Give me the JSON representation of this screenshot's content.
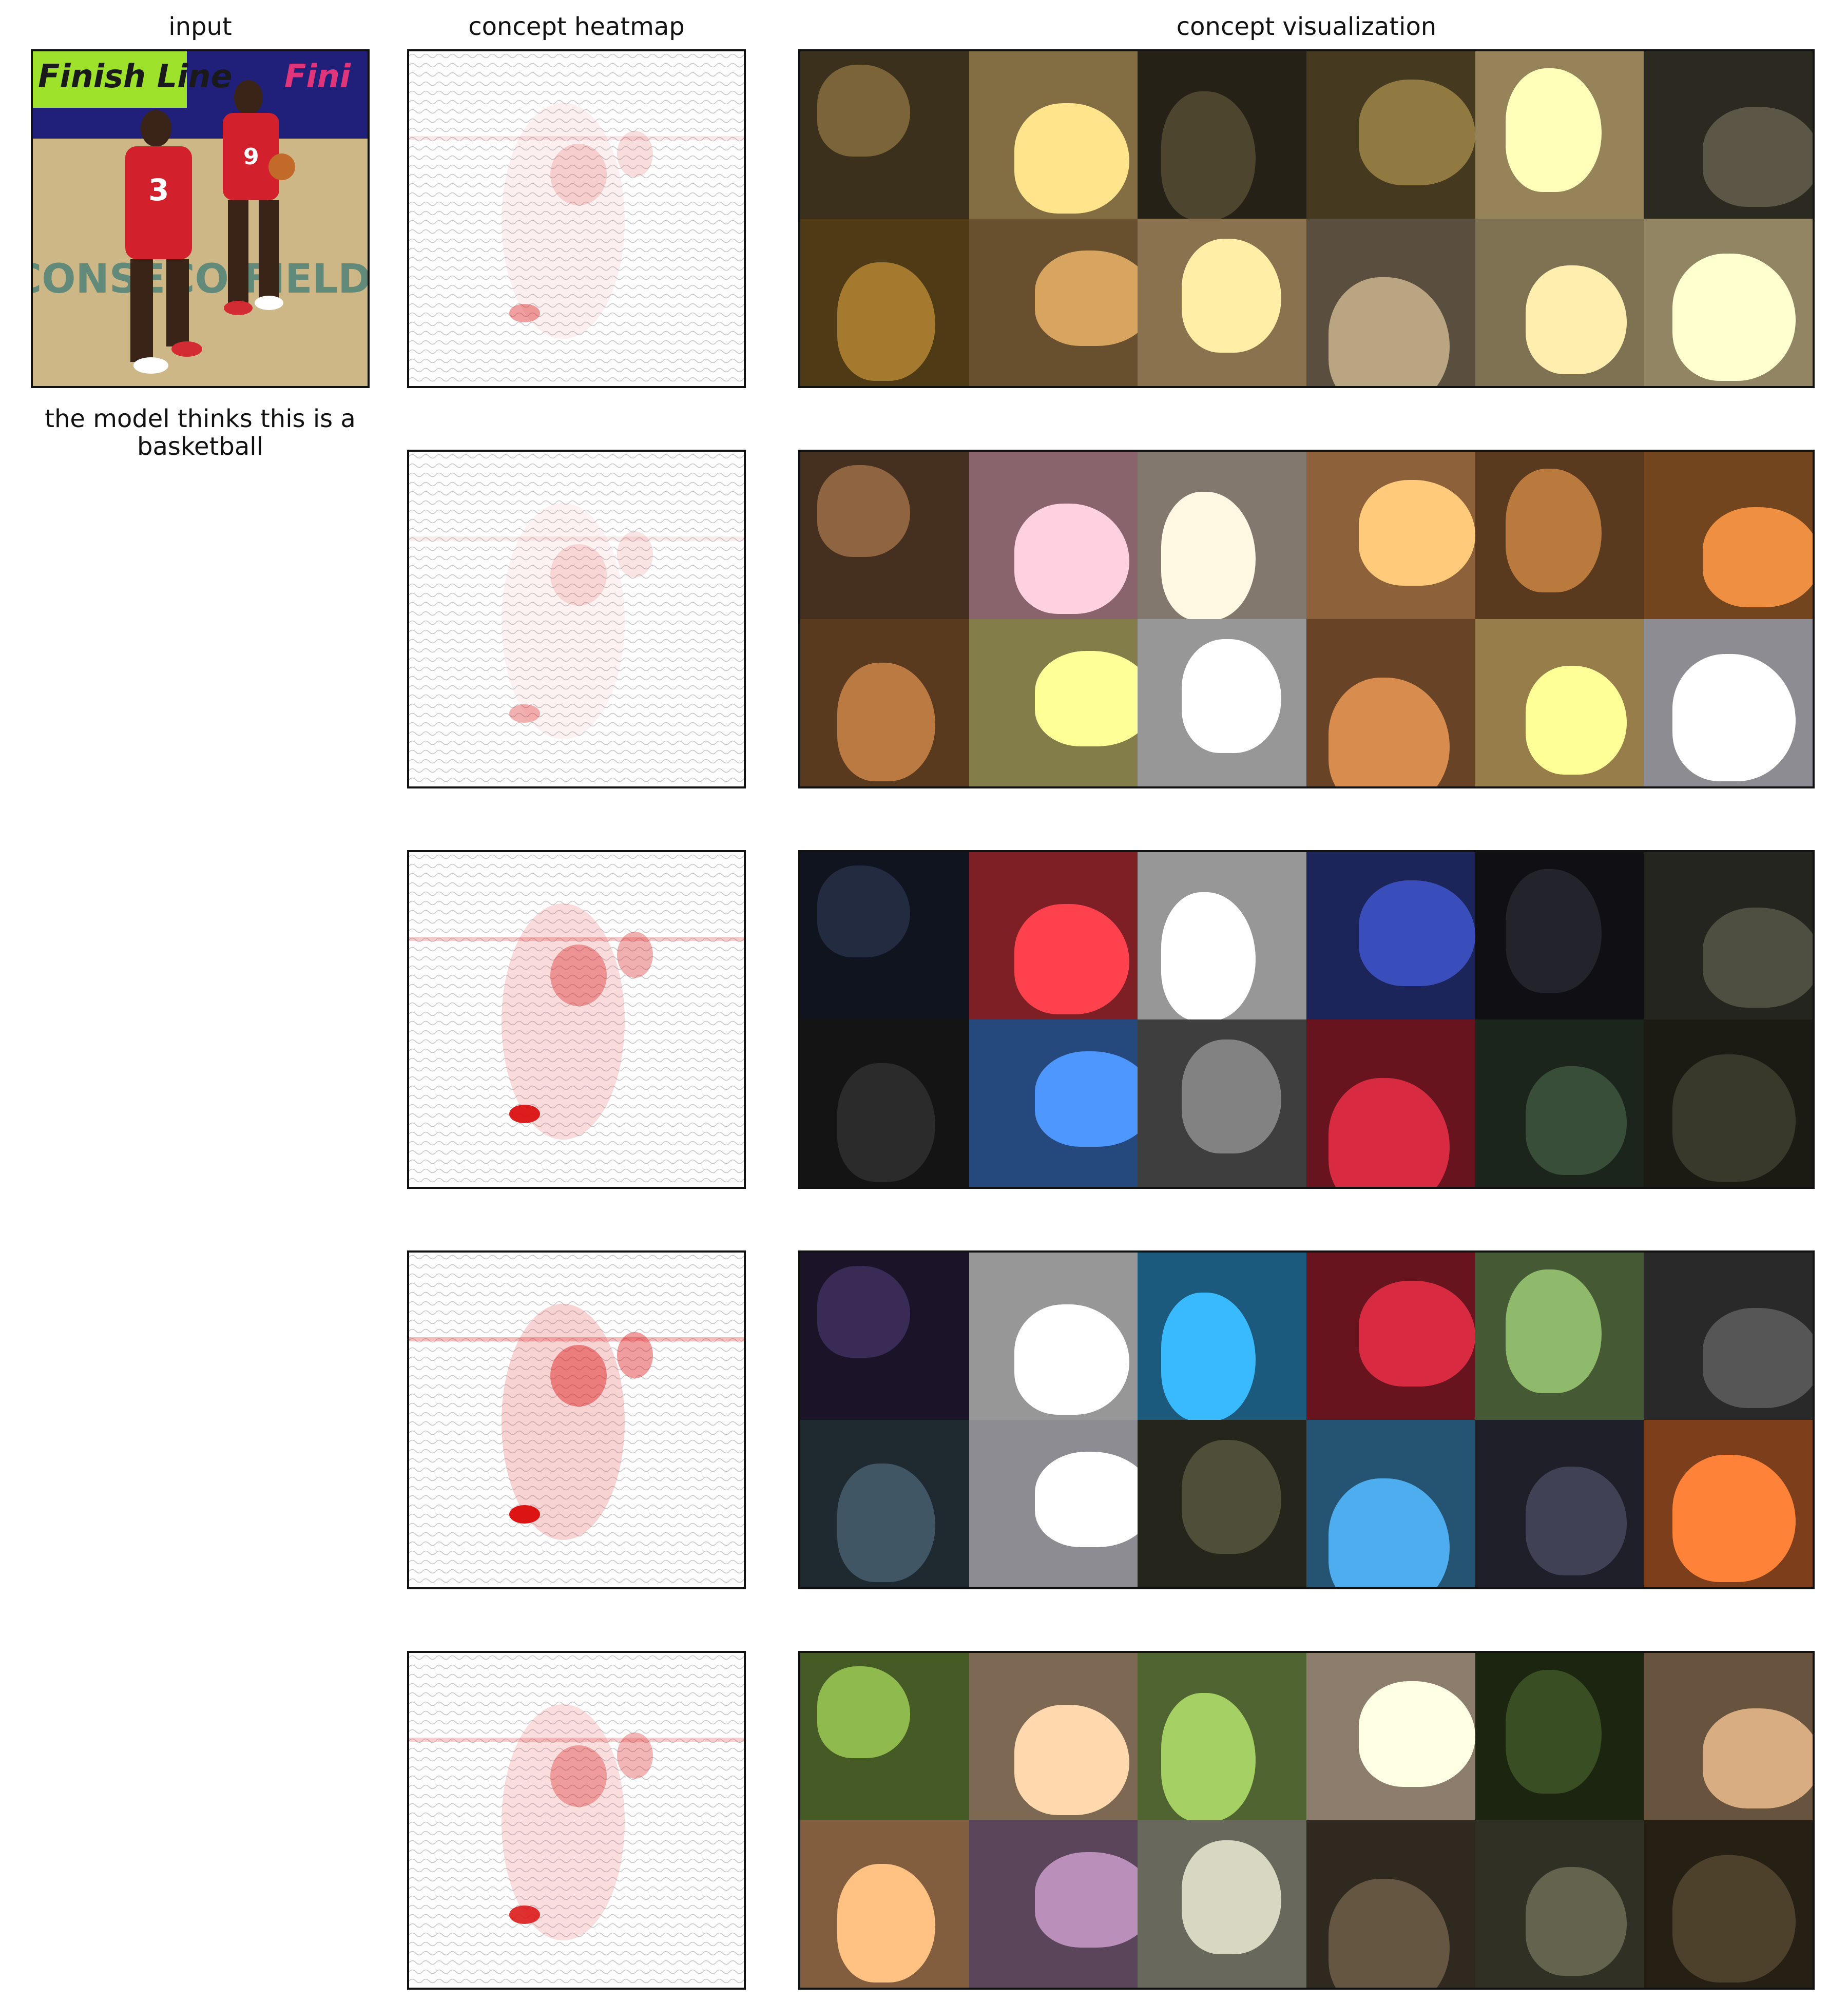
{
  "headers": {
    "input": "input",
    "heatmap": "concept heatmap",
    "visualization": "concept visualization"
  },
  "caption": "the model thinks this is a basketball",
  "input_image": {
    "description_colors": [
      "#c8b27e",
      "#d22b34",
      "#1f3fa0",
      "#9ee02a"
    ],
    "sign_text": "Finish Line",
    "sign_text_right": "Fini",
    "jersey_numbers": [
      "9",
      "3"
    ],
    "floor_text": "CONSECO FIELDHOUSE"
  },
  "rows": [
    {
      "heat_intensity": 0.25,
      "tile_palette": [
        "#5b4a2a",
        "#c9a968",
        "#3a3322",
        "#6b5a30",
        "#e8c98a",
        "#444034",
        "#7a5a22",
        "#a07a48",
        "#d4b07a",
        "#8a7a60",
        "#c2b080",
        "#e0cc9a"
      ]
    },
    {
      "heat_intensity": 0.2,
      "tile_palette": [
        "#6a4a30",
        "#d59aa6",
        "#c8b8a8",
        "#d9965a",
        "#8a5a2e",
        "#b06a30",
        "#8a5a30",
        "#c8c070",
        "#e8e8e8",
        "#a0683a",
        "#e8c070",
        "#d8d8e0"
      ]
    },
    {
      "heat_intensity": 0.6,
      "tile_palette": [
        "#1a2030",
        "#c0303a",
        "#e8e8e8",
        "#2a3a8a",
        "#1a1a20",
        "#3a3a30",
        "#202020",
        "#3a70c0",
        "#606060",
        "#a02030",
        "#2a3a2a",
        "#2a2a20"
      ]
    },
    {
      "heat_intensity": 0.75,
      "tile_palette": [
        "#2a2040",
        "#e8e8e8",
        "#2a8ac0",
        "#a02030",
        "#6a8a50",
        "#404040",
        "#30404a",
        "#d8d8e0",
        "#3a3a2a",
        "#3a80b0",
        "#303040",
        "#c0602a"
      ]
    },
    {
      "heat_intensity": 0.55,
      "tile_palette": [
        "#6a8a3a",
        "#c0a080",
        "#7a9a4a",
        "#d8c0a8",
        "#2a3a1a",
        "#a08060",
        "#c89060",
        "#8a6a8a",
        "#a0a090",
        "#4a4030",
        "#4a4a3a",
        "#3a3020"
      ]
    }
  ]
}
